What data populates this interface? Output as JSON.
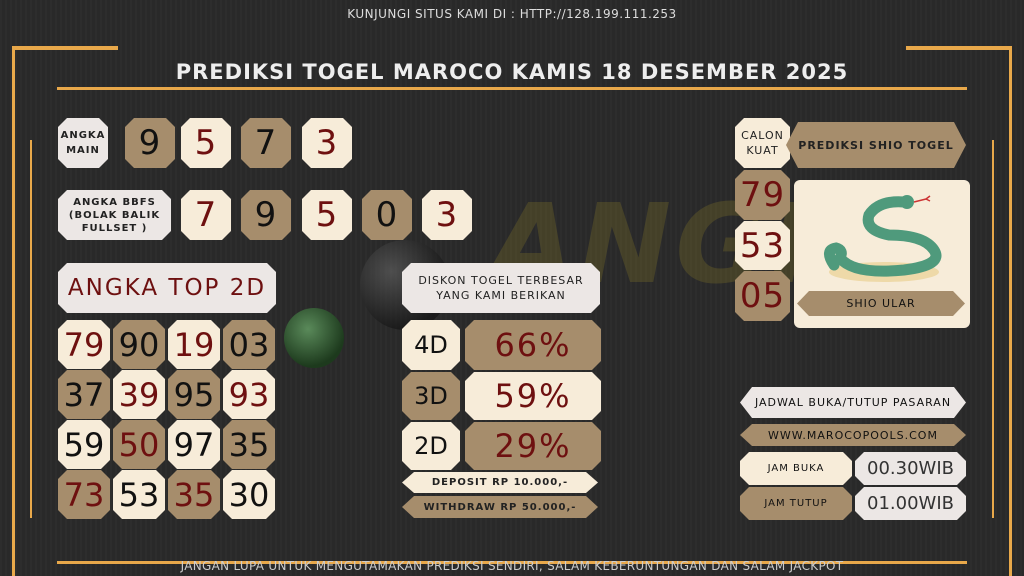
{
  "header": {
    "site_text": "KUNJUNGI SITUS KAMI DI : HTTP://128.199.111.253",
    "title": "PREDIKSI TOGEL MAROCO KAMIS 18 DESEMBER 2025"
  },
  "watermark": "ANGKA",
  "angka_main": {
    "label": "ANGKA MAIN",
    "digits": [
      "9",
      "5",
      "7",
      "3"
    ]
  },
  "bbfs": {
    "label": "ANGKA BBFS (BOLAK BALIK FULLSET )",
    "digits": [
      "7",
      "9",
      "5",
      "0",
      "3"
    ]
  },
  "top2d": {
    "label": "ANGKA TOP 2D",
    "rows": [
      [
        "79",
        "90",
        "19",
        "03"
      ],
      [
        "37",
        "39",
        "95",
        "93"
      ],
      [
        "59",
        "50",
        "97",
        "35"
      ],
      [
        "73",
        "53",
        "35",
        "30"
      ]
    ]
  },
  "diskon": {
    "label": "DISKON TOGEL TERBESAR YANG KAMI BERIKAN",
    "items": [
      {
        "type": "4D",
        "value": "66%"
      },
      {
        "type": "3D",
        "value": "59%"
      },
      {
        "type": "2D",
        "value": "29%"
      }
    ],
    "deposit": "DEPOSIT RP 10.000,-",
    "withdraw": "WITHDRAW RP 50.000,-"
  },
  "shio": {
    "calon_label": "CALON KUAT",
    "title": "PREDIKSI SHIO TOGEL",
    "numbers": [
      "79",
      "53",
      "05"
    ],
    "name": "SHIO ULAR"
  },
  "jadwal": {
    "title": "JADWAL BUKA/TUTUP PASARAN",
    "website": "WWW.MAROCOPOOLS.COM",
    "buka_label": "JAM BUKA",
    "buka_value": "00.30WIB",
    "tutup_label": "JAM TUTUP",
    "tutup_value": "01.00WIB"
  },
  "footer": {
    "text": "JANGAN LUPA UNTUK MENGUTAMAKAN PREDIKSI SENDIRI, SALAM KEBERUNTUNGAN DAN SALAM JACKPOT"
  },
  "colors": {
    "tan": "#a68d6c",
    "cream": "#f7ecd9",
    "red": "#6e1010",
    "gold": "#e8a84a",
    "background": "#2a2a2a"
  }
}
